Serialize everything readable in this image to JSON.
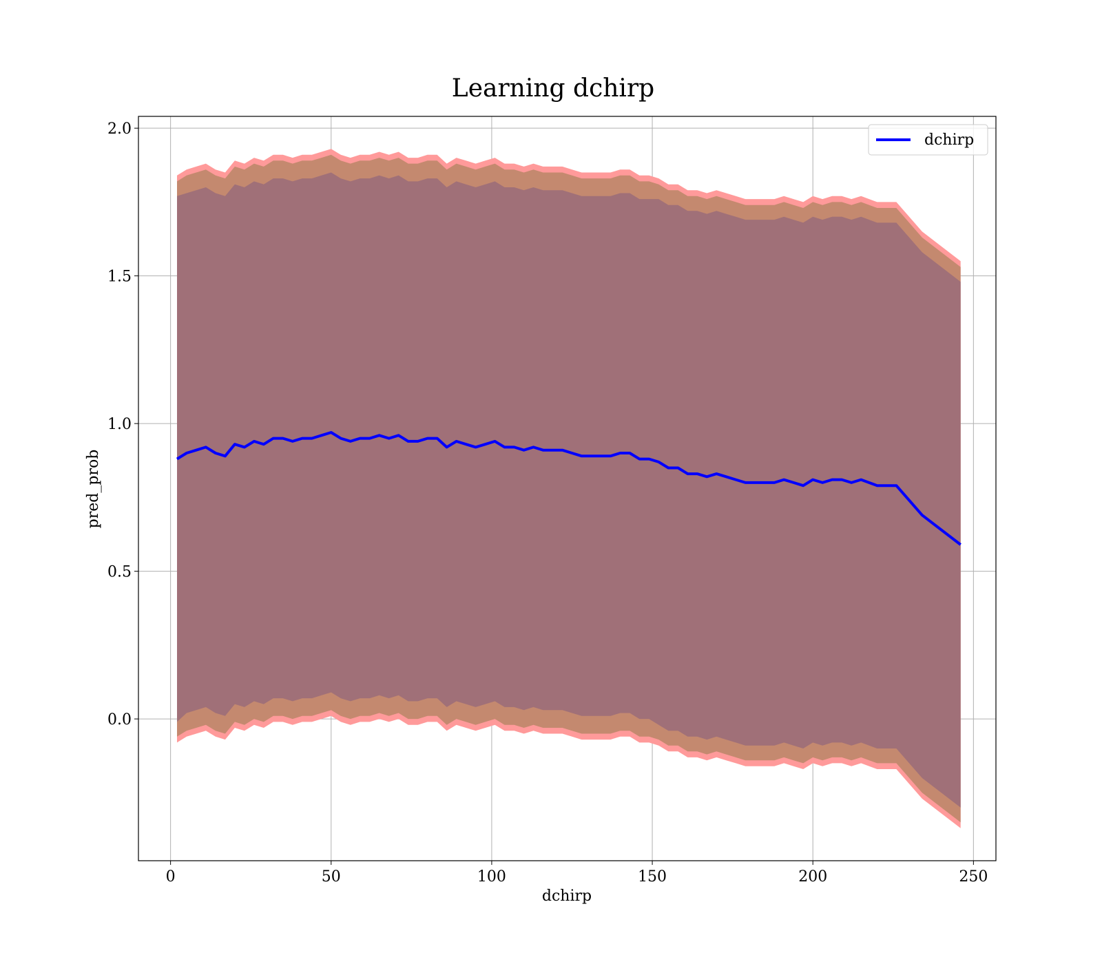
{
  "chart_data": {
    "type": "line",
    "title": "Learning dchirp",
    "xlabel": "dchirp",
    "ylabel": "pred_prob",
    "xlim": [
      -10,
      257
    ],
    "ylim": [
      -0.48,
      2.04
    ],
    "xticks": [
      0,
      50,
      100,
      150,
      200,
      250
    ],
    "yticks": [
      0.0,
      0.5,
      1.0,
      1.5,
      2.0
    ],
    "xtick_labels": [
      "0",
      "50",
      "100",
      "150",
      "200",
      "250"
    ],
    "ytick_labels": [
      "0.0",
      "0.5",
      "1.0",
      "1.5",
      "2.0"
    ],
    "grid": true,
    "legend": {
      "position": "top-right",
      "entries": [
        "dchirp"
      ]
    },
    "colors": {
      "line": "#0000ff",
      "band_outer": "#ff9a9a",
      "band_middle": "#c4896f",
      "band_inner": "#a07078",
      "grid": "#b0b0b0"
    },
    "series": [
      {
        "name": "dchirp",
        "x": [
          2,
          5,
          8,
          11,
          14,
          17,
          20,
          23,
          26,
          29,
          32,
          35,
          38,
          41,
          44,
          47,
          50,
          53,
          56,
          59,
          62,
          65,
          68,
          71,
          74,
          77,
          80,
          83,
          86,
          89,
          92,
          95,
          98,
          101,
          104,
          107,
          110,
          113,
          116,
          119,
          122,
          125,
          128,
          131,
          134,
          137,
          140,
          143,
          146,
          149,
          152,
          155,
          158,
          161,
          164,
          167,
          170,
          173,
          176,
          179,
          182,
          185,
          188,
          191,
          194,
          197,
          200,
          203,
          206,
          209,
          212,
          215,
          220,
          226,
          234,
          246
        ],
        "y": [
          0.88,
          0.9,
          0.91,
          0.92,
          0.9,
          0.89,
          0.93,
          0.92,
          0.94,
          0.93,
          0.95,
          0.95,
          0.94,
          0.95,
          0.95,
          0.96,
          0.97,
          0.95,
          0.94,
          0.95,
          0.95,
          0.96,
          0.95,
          0.96,
          0.94,
          0.94,
          0.95,
          0.95,
          0.92,
          0.94,
          0.93,
          0.92,
          0.93,
          0.94,
          0.92,
          0.92,
          0.91,
          0.92,
          0.91,
          0.91,
          0.91,
          0.9,
          0.89,
          0.89,
          0.89,
          0.89,
          0.9,
          0.9,
          0.88,
          0.88,
          0.87,
          0.85,
          0.85,
          0.83,
          0.83,
          0.82,
          0.83,
          0.82,
          0.81,
          0.8,
          0.8,
          0.8,
          0.8,
          0.81,
          0.8,
          0.79,
          0.81,
          0.8,
          0.81,
          0.81,
          0.8,
          0.81,
          0.79,
          0.79,
          0.69,
          0.59
        ],
        "band_inner_halfwidth": [
          0.89,
          0.88,
          0.88,
          0.88,
          0.88,
          0.88,
          0.88,
          0.88,
          0.88,
          0.88,
          0.88,
          0.88,
          0.88,
          0.88,
          0.88,
          0.88,
          0.88,
          0.88,
          0.88,
          0.88,
          0.88,
          0.88,
          0.88,
          0.88,
          0.88,
          0.88,
          0.88,
          0.88,
          0.88,
          0.88,
          0.88,
          0.88,
          0.88,
          0.88,
          0.88,
          0.88,
          0.88,
          0.88,
          0.88,
          0.88,
          0.88,
          0.88,
          0.88,
          0.88,
          0.88,
          0.88,
          0.88,
          0.88,
          0.88,
          0.88,
          0.89,
          0.89,
          0.89,
          0.89,
          0.89,
          0.89,
          0.89,
          0.89,
          0.89,
          0.89,
          0.89,
          0.89,
          0.89,
          0.89,
          0.89,
          0.89,
          0.89,
          0.89,
          0.89,
          0.89,
          0.89,
          0.89,
          0.89,
          0.89,
          0.89,
          0.89
        ],
        "band_middle_halfwidth": [
          0.94,
          0.94,
          0.94,
          0.94,
          0.94,
          0.94,
          0.94,
          0.94,
          0.94,
          0.94,
          0.94,
          0.94,
          0.94,
          0.94,
          0.94,
          0.94,
          0.94,
          0.94,
          0.94,
          0.94,
          0.94,
          0.94,
          0.94,
          0.94,
          0.94,
          0.94,
          0.94,
          0.94,
          0.94,
          0.94,
          0.94,
          0.94,
          0.94,
          0.94,
          0.94,
          0.94,
          0.94,
          0.94,
          0.94,
          0.94,
          0.94,
          0.94,
          0.94,
          0.94,
          0.94,
          0.94,
          0.94,
          0.94,
          0.94,
          0.94,
          0.94,
          0.94,
          0.94,
          0.94,
          0.94,
          0.94,
          0.94,
          0.94,
          0.94,
          0.94,
          0.94,
          0.94,
          0.94,
          0.94,
          0.94,
          0.94,
          0.94,
          0.94,
          0.94,
          0.94,
          0.94,
          0.94,
          0.94,
          0.94,
          0.94,
          0.94
        ],
        "band_outer_halfwidth": [
          0.96,
          0.96,
          0.96,
          0.96,
          0.96,
          0.96,
          0.96,
          0.96,
          0.96,
          0.96,
          0.96,
          0.96,
          0.96,
          0.96,
          0.96,
          0.96,
          0.96,
          0.96,
          0.96,
          0.96,
          0.96,
          0.96,
          0.96,
          0.96,
          0.96,
          0.96,
          0.96,
          0.96,
          0.96,
          0.96,
          0.96,
          0.96,
          0.96,
          0.96,
          0.96,
          0.96,
          0.96,
          0.96,
          0.96,
          0.96,
          0.96,
          0.96,
          0.96,
          0.96,
          0.96,
          0.96,
          0.96,
          0.96,
          0.96,
          0.96,
          0.96,
          0.96,
          0.96,
          0.96,
          0.96,
          0.96,
          0.96,
          0.96,
          0.96,
          0.96,
          0.96,
          0.96,
          0.96,
          0.96,
          0.96,
          0.96,
          0.96,
          0.96,
          0.96,
          0.96,
          0.96,
          0.96,
          0.96,
          0.96,
          0.96,
          0.96
        ]
      }
    ]
  }
}
